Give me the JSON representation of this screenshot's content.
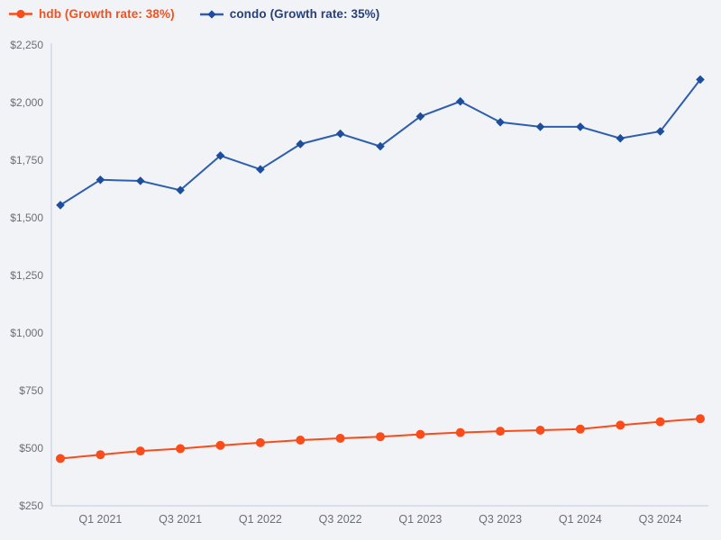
{
  "chart_data": {
    "type": "line",
    "title": "",
    "xlabel": "",
    "ylabel": "",
    "grid": false,
    "legend_position": "top-left",
    "categories": [
      "Q4 2020",
      "Q1 2021",
      "Q2 2021",
      "Q3 2021",
      "Q4 2021",
      "Q1 2022",
      "Q2 2022",
      "Q3 2022",
      "Q4 2022",
      "Q1 2023",
      "Q2 2023",
      "Q3 2023",
      "Q4 2023",
      "Q1 2024",
      "Q2 2024",
      "Q3 2024",
      "Q4 2024"
    ],
    "series": [
      {
        "name": "hdb",
        "legend_label": "hdb (Growth rate: 38%)",
        "growth_rate": "38%",
        "marker": "circle",
        "color": "#f84c1a",
        "marker_color": "#f84c1a",
        "text_color": "#f4511e",
        "values": [
          455,
          472,
          488,
          498,
          512,
          524,
          535,
          543,
          550,
          560,
          568,
          574,
          578,
          583,
          600,
          615,
          628
        ]
      },
      {
        "name": "condo",
        "legend_label": "condo (Growth rate: 35%)",
        "growth_rate": "35%",
        "marker": "diamond",
        "color": "#2e5fae",
        "marker_color": "#1d4e9e",
        "text_color": "#27417b",
        "values": [
          1555,
          1665,
          1660,
          1620,
          1770,
          1710,
          1820,
          1865,
          1810,
          1940,
          2005,
          1915,
          1895,
          1895,
          1845,
          1875,
          2100
        ]
      }
    ],
    "ylim": [
      250,
      2250
    ],
    "y_tick_values": [
      250,
      500,
      750,
      1000,
      1250,
      1500,
      1750,
      2000,
      2250
    ],
    "y_tick_labels": [
      "$250",
      "$500",
      "$750",
      "$1,000",
      "$1,250",
      "$1,500",
      "$1,750",
      "$2,000",
      "$2,250"
    ],
    "x_tick_indices": [
      1,
      3,
      5,
      7,
      9,
      11,
      13,
      15
    ],
    "x_tick_labels": [
      "Q1 2021",
      "Q3 2021",
      "Q1 2022",
      "Q3 2022",
      "Q1 2023",
      "Q3 2023",
      "Q1 2024",
      "Q3 2024"
    ],
    "colors": {
      "background": "#f2f3f6",
      "axis": "#c9d2e4",
      "tick_text": "#6a6e77"
    }
  }
}
